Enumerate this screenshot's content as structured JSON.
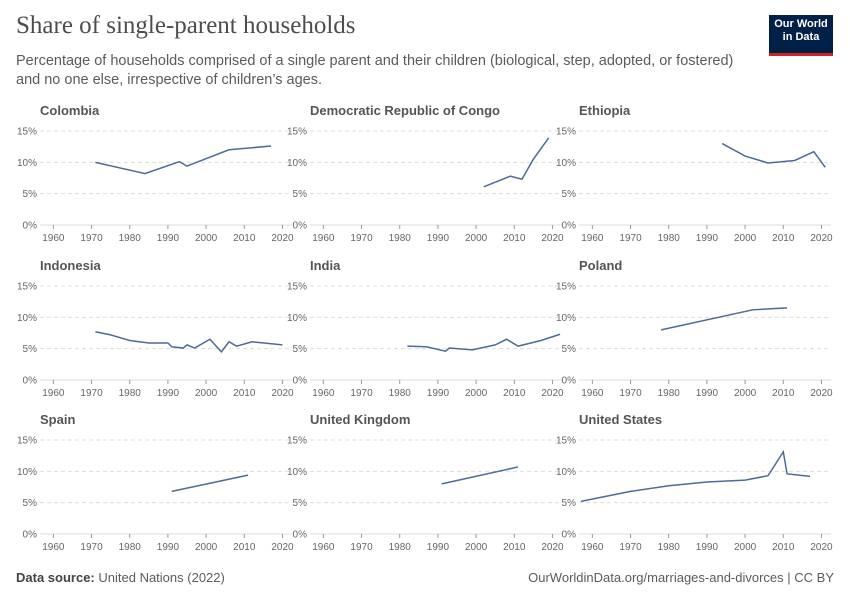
{
  "header": {
    "title": "Share of single-parent households",
    "subtitle": "Percentage of households comprised of a single parent and their children (biological, step, adopted, or fostered) and no one else, irrespective of children’s ages.",
    "logo": "Our World in Data"
  },
  "footer": {
    "source_label": "Data source:",
    "source": "United Nations (2022)",
    "url": "OurWorldinData.org/marriages-and-divorces | CC BY"
  },
  "chart_data": [
    {
      "type": "line",
      "title": "Colombia",
      "color": "#4c6a9c",
      "x": [
        1971,
        1984,
        1993,
        1995,
        2006,
        2017
      ],
      "values": [
        10.0,
        8.2,
        10.1,
        9.4,
        12.0,
        12.6
      ],
      "xlim": [
        1956.5,
        2022.5
      ],
      "ylim": [
        0,
        15
      ],
      "xticks": [
        1960,
        1970,
        1980,
        1990,
        2000,
        2010,
        2020
      ],
      "yticks": [
        {
          "value": 0,
          "label": "0%"
        },
        {
          "value": 5,
          "label": "5%"
        },
        {
          "value": 10,
          "label": "10%"
        },
        {
          "value": 15,
          "label": "15%"
        }
      ],
      "grid": true
    },
    {
      "type": "line",
      "title": "Democratic Republic of Congo",
      "color": "#4c6a9c",
      "x": [
        2002,
        2009,
        2012,
        2015,
        2019
      ],
      "values": [
        6.1,
        7.8,
        7.3,
        10.5,
        13.9
      ],
      "xlim": [
        1956.5,
        2022.5
      ],
      "ylim": [
        0,
        15
      ],
      "xticks": [
        1960,
        1970,
        1980,
        1990,
        2000,
        2010,
        2020
      ],
      "yticks": [
        {
          "value": 0,
          "label": "0%"
        },
        {
          "value": 5,
          "label": "5%"
        },
        {
          "value": 10,
          "label": "10%"
        },
        {
          "value": 15,
          "label": "15%"
        }
      ],
      "grid": true
    },
    {
      "type": "line",
      "title": "Ethiopia",
      "color": "#4c6a9c",
      "x": [
        1994,
        2000,
        2006,
        2013,
        2018,
        2021
      ],
      "values": [
        13.0,
        11.0,
        9.9,
        10.3,
        11.7,
        9.2
      ],
      "xlim": [
        1956.5,
        2022.5
      ],
      "ylim": [
        0,
        15
      ],
      "xticks": [
        1960,
        1970,
        1980,
        1990,
        2000,
        2010,
        2020
      ],
      "yticks": [
        {
          "value": 0,
          "label": "0%"
        },
        {
          "value": 5,
          "label": "5%"
        },
        {
          "value": 10,
          "label": "10%"
        },
        {
          "value": 15,
          "label": "15%"
        }
      ],
      "grid": true
    },
    {
      "type": "line",
      "title": "Indonesia",
      "color": "#4c6a9c",
      "x": [
        1971,
        1975,
        1980,
        1985,
        1990,
        1991,
        1994,
        1995,
        1997,
        2001,
        2004,
        2006,
        2008,
        2012,
        2020
      ],
      "values": [
        7.7,
        7.2,
        6.3,
        5.9,
        5.9,
        5.3,
        5.1,
        5.6,
        5.1,
        6.5,
        4.5,
        6.1,
        5.4,
        6.1,
        5.6
      ],
      "xlim": [
        1956.5,
        2022.5
      ],
      "ylim": [
        0,
        15
      ],
      "xticks": [
        1960,
        1970,
        1980,
        1990,
        2000,
        2010,
        2020
      ],
      "yticks": [
        {
          "value": 0,
          "label": "0%"
        },
        {
          "value": 5,
          "label": "5%"
        },
        {
          "value": 10,
          "label": "10%"
        },
        {
          "value": 15,
          "label": "15%"
        }
      ],
      "grid": true
    },
    {
      "type": "line",
      "title": "India",
      "color": "#4c6a9c",
      "x": [
        1982,
        1987,
        1992,
        1993,
        1999,
        2005,
        2008,
        2011,
        2017,
        2022
      ],
      "values": [
        5.4,
        5.3,
        4.6,
        5.1,
        4.8,
        5.6,
        6.5,
        5.4,
        6.3,
        7.3
      ],
      "xlim": [
        1956.5,
        2022.5
      ],
      "ylim": [
        0,
        15
      ],
      "xticks": [
        1960,
        1970,
        1980,
        1990,
        2000,
        2010,
        2020
      ],
      "yticks": [
        {
          "value": 0,
          "label": "0%"
        },
        {
          "value": 5,
          "label": "5%"
        },
        {
          "value": 10,
          "label": "10%"
        },
        {
          "value": 15,
          "label": "15%"
        }
      ],
      "grid": true
    },
    {
      "type": "line",
      "title": "Poland",
      "color": "#4c6a9c",
      "x": [
        1978,
        2002,
        2011
      ],
      "values": [
        8.0,
        11.2,
        11.5
      ],
      "xlim": [
        1956.5,
        2022.5
      ],
      "ylim": [
        0,
        15
      ],
      "xticks": [
        1960,
        1970,
        1980,
        1990,
        2000,
        2010,
        2020
      ],
      "yticks": [
        {
          "value": 0,
          "label": "0%"
        },
        {
          "value": 5,
          "label": "5%"
        },
        {
          "value": 10,
          "label": "10%"
        },
        {
          "value": 15,
          "label": "15%"
        }
      ],
      "grid": true
    },
    {
      "type": "line",
      "title": "Spain",
      "color": "#4c6a9c",
      "x": [
        1991,
        2011
      ],
      "values": [
        6.8,
        9.4
      ],
      "xlim": [
        1956.5,
        2022.5
      ],
      "ylim": [
        0,
        15
      ],
      "xticks": [
        1960,
        1970,
        1980,
        1990,
        2000,
        2010,
        2020
      ],
      "yticks": [
        {
          "value": 0,
          "label": "0%"
        },
        {
          "value": 5,
          "label": "5%"
        },
        {
          "value": 10,
          "label": "10%"
        },
        {
          "value": 15,
          "label": "15%"
        }
      ],
      "grid": true
    },
    {
      "type": "line",
      "title": "United Kingdom",
      "color": "#4c6a9c",
      "x": [
        1991,
        2011
      ],
      "values": [
        8.0,
        10.7
      ],
      "xlim": [
        1956.5,
        2022.5
      ],
      "ylim": [
        0,
        15
      ],
      "xticks": [
        1960,
        1970,
        1980,
        1990,
        2000,
        2010,
        2020
      ],
      "yticks": [
        {
          "value": 0,
          "label": "0%"
        },
        {
          "value": 5,
          "label": "5%"
        },
        {
          "value": 10,
          "label": "10%"
        },
        {
          "value": 15,
          "label": "15%"
        }
      ],
      "grid": true
    },
    {
      "type": "line",
      "title": "United States",
      "color": "#4c6a9c",
      "x": [
        1957,
        1970,
        1980,
        1990,
        2000,
        2006,
        2010,
        2011,
        2017
      ],
      "values": [
        5.2,
        6.8,
        7.7,
        8.3,
        8.6,
        9.3,
        13.1,
        9.6,
        9.2
      ],
      "xlim": [
        1956.5,
        2022.5
      ],
      "ylim": [
        0,
        15
      ],
      "xticks": [
        1960,
        1970,
        1980,
        1990,
        2000,
        2010,
        2020
      ],
      "yticks": [
        {
          "value": 0,
          "label": "0%"
        },
        {
          "value": 5,
          "label": "5%"
        },
        {
          "value": 10,
          "label": "10%"
        },
        {
          "value": 15,
          "label": "15%"
        }
      ],
      "grid": true
    }
  ]
}
